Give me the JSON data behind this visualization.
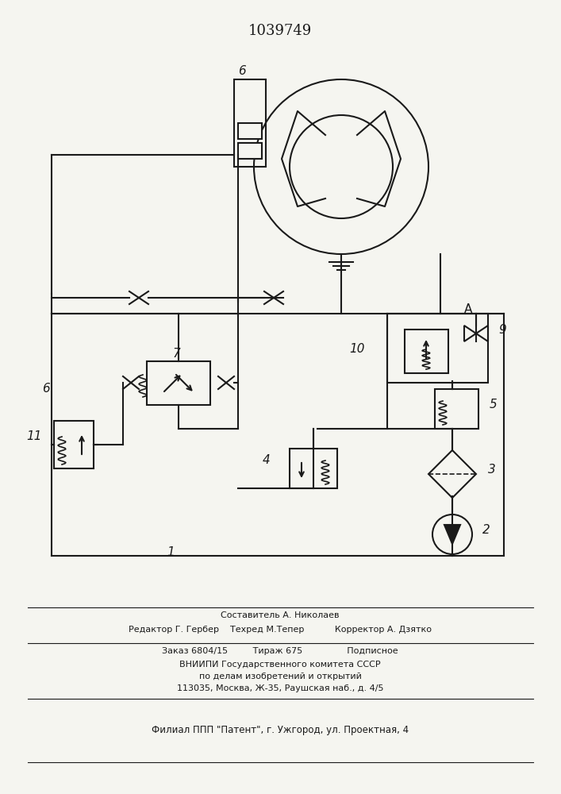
{
  "title": "1039749",
  "bg_color": "#f5f5f0",
  "line_color": "#1a1a1a",
  "footer_lines": [
    "Составитель А. Николаев",
    "Редактор Г. Гербер    Техред М.Тепер           Корректор А. Дзятко",
    "Заказ 6804/15         Тираж 675                Подписное",
    "ВНИИПИ Государственного комитета СССР",
    "по делам изобретений и открытий",
    "113035, Москва, Ж-35, Раушская наб., д. 4/5",
    "Филиал ППП \"Патент\", г. Ужгород, ул. Проектная, 4"
  ]
}
